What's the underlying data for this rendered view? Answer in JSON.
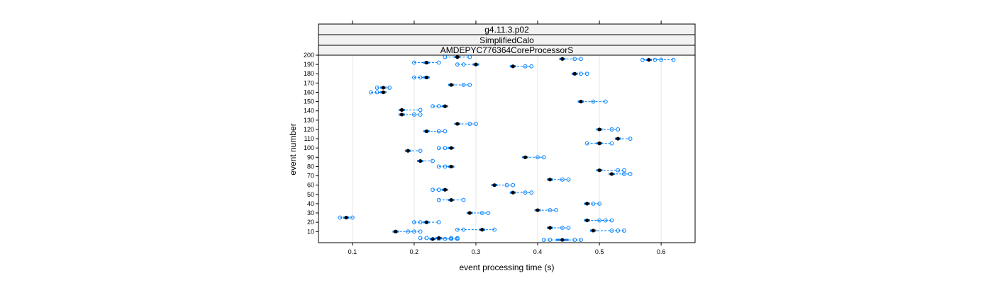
{
  "chart_data": {
    "type": "scatter",
    "strips": [
      "g4.11.3.p02",
      "SimplifiedCalo",
      "AMDEPYC776364CoreProcessorS"
    ],
    "xlabel": "event processing time (s)",
    "ylabel": "event number",
    "xlim": [
      0.045,
      0.655
    ],
    "ylim": [
      -2,
      200
    ],
    "xticks": [
      0.1,
      0.2,
      0.3,
      0.4,
      0.5,
      0.6
    ],
    "xtick_labels": [
      "0.1",
      "0.2",
      "0.3",
      "0.4",
      "0.5",
      "0.6"
    ],
    "yticks": [
      10,
      20,
      30,
      40,
      50,
      60,
      70,
      80,
      90,
      100,
      110,
      120,
      130,
      140,
      150,
      160,
      170,
      180,
      190,
      200
    ],
    "ytick_labels": [
      "10",
      "20",
      "30",
      "40",
      "50",
      "60",
      "70",
      "80",
      "90",
      "100",
      "110",
      "120",
      "130",
      "140",
      "150",
      "160",
      "170",
      "180",
      "190",
      "200"
    ],
    "grid": true,
    "colors": {
      "median": "#000000",
      "box": "#0080ff",
      "outlier": "#0080ff",
      "whisker": "#0080ff",
      "strip_bg": "#f2f2f2",
      "grid": "#e6e6e6"
    },
    "rows": [
      {
        "event": 1,
        "median": 0.44,
        "q1": 0.43,
        "q3": 0.45,
        "outliers": [
          0.41,
          0.42,
          0.46,
          0.47
        ]
      },
      {
        "event": 2,
        "median": 0.23,
        "q1": 0.225,
        "q3": 0.235,
        "outliers": [
          0.24,
          0.25,
          0.26,
          0.27
        ]
      },
      {
        "event": 3,
        "median": 0.24,
        "q1": 0.235,
        "q3": 0.245,
        "outliers": [
          0.22,
          0.21,
          0.26,
          0.27
        ]
      },
      {
        "event": 10,
        "median": 0.17,
        "q1": 0.165,
        "q3": 0.175,
        "outliers": [
          0.19,
          0.2,
          0.21
        ]
      },
      {
        "event": 11,
        "median": 0.49,
        "q1": 0.485,
        "q3": 0.495,
        "outliers": [
          0.52,
          0.53,
          0.54
        ]
      },
      {
        "event": 12,
        "median": 0.31,
        "q1": 0.305,
        "q3": 0.315,
        "outliers": [
          0.27,
          0.28,
          0.33
        ]
      },
      {
        "event": 14,
        "median": 0.42,
        "q1": 0.415,
        "q3": 0.425,
        "outliers": [
          0.44,
          0.45
        ]
      },
      {
        "event": 20,
        "median": 0.22,
        "q1": 0.215,
        "q3": 0.225,
        "outliers": [
          0.2,
          0.21,
          0.24
        ]
      },
      {
        "event": 22,
        "median": 0.48,
        "q1": 0.475,
        "q3": 0.485,
        "outliers": [
          0.5,
          0.51,
          0.52
        ]
      },
      {
        "event": 25,
        "median": 0.09,
        "q1": 0.085,
        "q3": 0.095,
        "outliers": [
          0.08,
          0.1
        ]
      },
      {
        "event": 30,
        "median": 0.29,
        "q1": 0.285,
        "q3": 0.295,
        "outliers": [
          0.31,
          0.32
        ]
      },
      {
        "event": 33,
        "median": 0.4,
        "q1": 0.395,
        "q3": 0.405,
        "outliers": [
          0.42,
          0.43
        ]
      },
      {
        "event": 40,
        "median": 0.48,
        "q1": 0.475,
        "q3": 0.485,
        "outliers": [
          0.49,
          0.5
        ]
      },
      {
        "event": 44,
        "median": 0.26,
        "q1": 0.255,
        "q3": 0.265,
        "outliers": [
          0.24,
          0.28
        ]
      },
      {
        "event": 52,
        "median": 0.36,
        "q1": 0.355,
        "q3": 0.365,
        "outliers": [
          0.38,
          0.39
        ]
      },
      {
        "event": 55,
        "median": 0.25,
        "q1": 0.245,
        "q3": 0.255,
        "outliers": [
          0.23,
          0.24
        ]
      },
      {
        "event": 60,
        "median": 0.33,
        "q1": 0.325,
        "q3": 0.335,
        "outliers": [
          0.35,
          0.36
        ]
      },
      {
        "event": 66,
        "median": 0.42,
        "q1": 0.415,
        "q3": 0.425,
        "outliers": [
          0.44,
          0.45
        ]
      },
      {
        "event": 72,
        "median": 0.52,
        "q1": 0.515,
        "q3": 0.525,
        "outliers": [
          0.54,
          0.55
        ]
      },
      {
        "event": 76,
        "median": 0.5,
        "q1": 0.495,
        "q3": 0.505,
        "outliers": [
          0.53,
          0.54
        ]
      },
      {
        "event": 80,
        "median": 0.26,
        "q1": 0.255,
        "q3": 0.265,
        "outliers": [
          0.24,
          0.25
        ]
      },
      {
        "event": 86,
        "median": 0.21,
        "q1": 0.205,
        "q3": 0.215,
        "outliers": [
          0.23
        ]
      },
      {
        "event": 90,
        "median": 0.38,
        "q1": 0.375,
        "q3": 0.385,
        "outliers": [
          0.4,
          0.41
        ]
      },
      {
        "event": 97,
        "median": 0.19,
        "q1": 0.185,
        "q3": 0.195,
        "outliers": [
          0.21
        ]
      },
      {
        "event": 100,
        "median": 0.26,
        "q1": 0.255,
        "q3": 0.265,
        "outliers": [
          0.24,
          0.25
        ]
      },
      {
        "event": 105,
        "median": 0.5,
        "q1": 0.495,
        "q3": 0.505,
        "outliers": [
          0.48,
          0.52
        ]
      },
      {
        "event": 110,
        "median": 0.53,
        "q1": 0.525,
        "q3": 0.535,
        "outliers": [
          0.55
        ]
      },
      {
        "event": 118,
        "median": 0.22,
        "q1": 0.215,
        "q3": 0.225,
        "outliers": [
          0.24,
          0.25
        ]
      },
      {
        "event": 120,
        "median": 0.5,
        "q1": 0.495,
        "q3": 0.505,
        "outliers": [
          0.52,
          0.53
        ]
      },
      {
        "event": 126,
        "median": 0.27,
        "q1": 0.265,
        "q3": 0.275,
        "outliers": [
          0.29,
          0.3
        ]
      },
      {
        "event": 136,
        "median": 0.18,
        "q1": 0.175,
        "q3": 0.185,
        "outliers": [
          0.2,
          0.21
        ]
      },
      {
        "event": 141,
        "median": 0.18,
        "q1": 0.175,
        "q3": 0.185,
        "outliers": [
          0.21
        ]
      },
      {
        "event": 145,
        "median": 0.25,
        "q1": 0.245,
        "q3": 0.255,
        "outliers": [
          0.23,
          0.24
        ]
      },
      {
        "event": 150,
        "median": 0.47,
        "q1": 0.465,
        "q3": 0.475,
        "outliers": [
          0.49,
          0.51
        ]
      },
      {
        "event": 160,
        "median": 0.15,
        "q1": 0.145,
        "q3": 0.155,
        "outliers": [
          0.13,
          0.14
        ]
      },
      {
        "event": 165,
        "median": 0.15,
        "q1": 0.145,
        "q3": 0.155,
        "outliers": [
          0.14,
          0.16
        ]
      },
      {
        "event": 168,
        "median": 0.26,
        "q1": 0.255,
        "q3": 0.265,
        "outliers": [
          0.28,
          0.29
        ]
      },
      {
        "event": 176,
        "median": 0.22,
        "q1": 0.215,
        "q3": 0.225,
        "outliers": [
          0.2,
          0.21
        ]
      },
      {
        "event": 180,
        "median": 0.46,
        "q1": 0.455,
        "q3": 0.465,
        "outliers": [
          0.47,
          0.48
        ]
      },
      {
        "event": 188,
        "median": 0.36,
        "q1": 0.355,
        "q3": 0.365,
        "outliers": [
          0.38,
          0.39
        ]
      },
      {
        "event": 190,
        "median": 0.3,
        "q1": 0.295,
        "q3": 0.305,
        "outliers": [
          0.27,
          0.28
        ]
      },
      {
        "event": 192,
        "median": 0.22,
        "q1": 0.215,
        "q3": 0.225,
        "outliers": [
          0.2,
          0.24
        ]
      },
      {
        "event": 195,
        "median": 0.58,
        "q1": 0.575,
        "q3": 0.585,
        "outliers": [
          0.57,
          0.59,
          0.6,
          0.62
        ]
      },
      {
        "event": 196,
        "median": 0.44,
        "q1": 0.435,
        "q3": 0.445,
        "outliers": [
          0.46,
          0.47
        ]
      },
      {
        "event": 198,
        "median": 0.27,
        "q1": 0.265,
        "q3": 0.275,
        "outliers": [
          0.25,
          0.29
        ]
      }
    ]
  }
}
